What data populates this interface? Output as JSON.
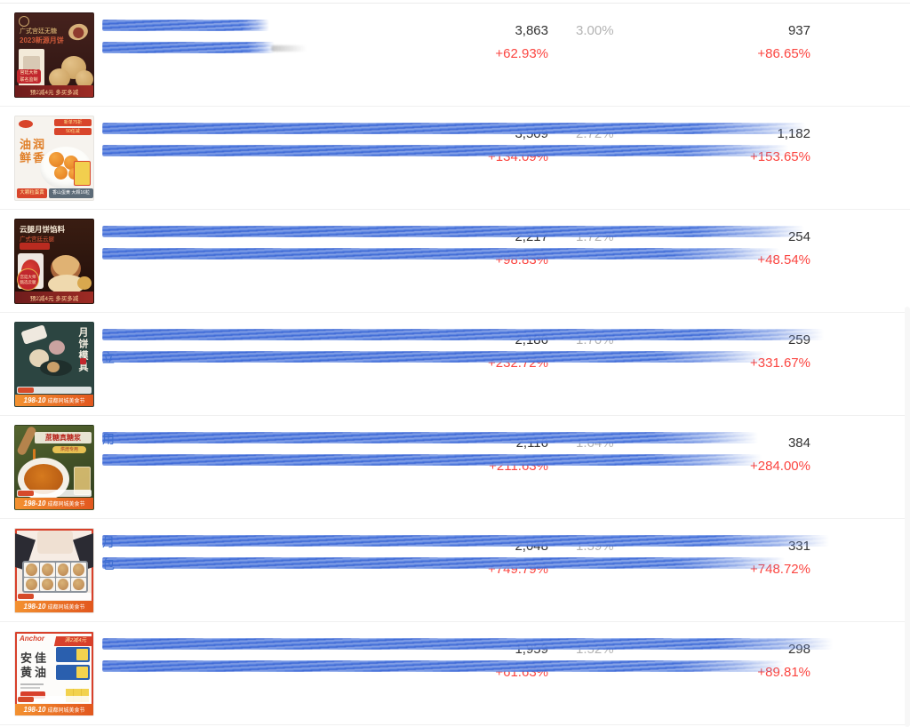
{
  "colors": {
    "positive_change": "#fb4540",
    "value_text": "#333333",
    "rate_text": "#b3b3b3",
    "link_scribble_blue": "#3f6fd0",
    "promo_orange": "#e2571e",
    "promo_red": "#c1272d"
  },
  "table": {
    "rows": [
      {
        "metrics": {
          "main": "3,863",
          "main_change": "+62.93%",
          "rate": "3.00%",
          "secondary": "937",
          "secondary_change": "+86.65%"
        },
        "title": {
          "line1_lead": "",
          "line2_lead": ""
        },
        "thumb": {
          "line1": "广式宫廷无糖",
          "line2": "2023新源月饼",
          "badge1": "宫廷大师",
          "badge2": "联名监制",
          "banner": "预2减4元 多买多减"
        }
      },
      {
        "metrics": {
          "main": "3,509",
          "main_change": "+134.09%",
          "rate": "2.72%",
          "secondary": "1,182",
          "secondary_change": "+153.65%"
        },
        "title": {
          "line1_lead": "",
          "line2_lead": ""
        },
        "thumb": {
          "corner1": "新单75折",
          "corner2": "50任减",
          "slogan1": "油润",
          "slogan2": "鲜香",
          "chip1": "大颗粒蛋黄",
          "chip2": "香山蛋黄 大颗16粒"
        }
      },
      {
        "metrics": {
          "main": "2,217",
          "main_change": "+98.83%",
          "rate": "1.72%",
          "secondary": "254",
          "secondary_change": "+48.54%"
        },
        "title": {
          "line1_lead": "",
          "line2_lead": ""
        },
        "thumb": {
          "line1": "云腿月饼馅料",
          "line2": "广式宫廷云腿",
          "badge1": "宫廷大师",
          "badge2": "甄选云腿",
          "banner": "预2减4元 多买多减"
        }
      },
      {
        "metrics": {
          "main": "2,186",
          "main_change": "+232.72%",
          "rate": "1.70%",
          "secondary": "259",
          "secondary_change": "+331.67%"
        },
        "title": {
          "line1_lead": "",
          "line2_lead": "立"
        },
        "thumb": {
          "vertical": "月饼模具",
          "banner_price": "198-10",
          "banner_text": "成都同城美食节"
        }
      },
      {
        "metrics": {
          "main": "2,116",
          "main_change": "+211.63%",
          "rate": "1.64%",
          "secondary": "384",
          "secondary_change": "+284.00%"
        },
        "title": {
          "line1_lead": "用",
          "line2_lead": ""
        },
        "thumb": {
          "slogan": "蔗糖真糖浆",
          "chip": "烘焙专用",
          "banner_price": "198-10",
          "banner_text": "成都同城美食节"
        }
      },
      {
        "metrics": {
          "main": "2,048",
          "main_change": "+749.79%",
          "rate": "1.59%",
          "secondary": "331",
          "secondary_change": "+748.72%"
        },
        "title": {
          "line1_lead": "月",
          "line2_lead": "包"
        },
        "thumb": {
          "banner_price": "198-10",
          "banner_text": "成都同城美食节"
        }
      },
      {
        "metrics": {
          "main": "1,959",
          "main_change": "+61.63%",
          "rate": "1.52%",
          "secondary": "298",
          "secondary_change": "+89.81%"
        },
        "title": {
          "line1_lead": "",
          "line2_lead": ""
        },
        "thumb": {
          "brand": "Anchor",
          "ribbon": "满2减4元",
          "name1": "安佳",
          "name2": "黄油",
          "banner_price": "198-10",
          "banner_text": "成都同城美食节"
        }
      }
    ]
  }
}
